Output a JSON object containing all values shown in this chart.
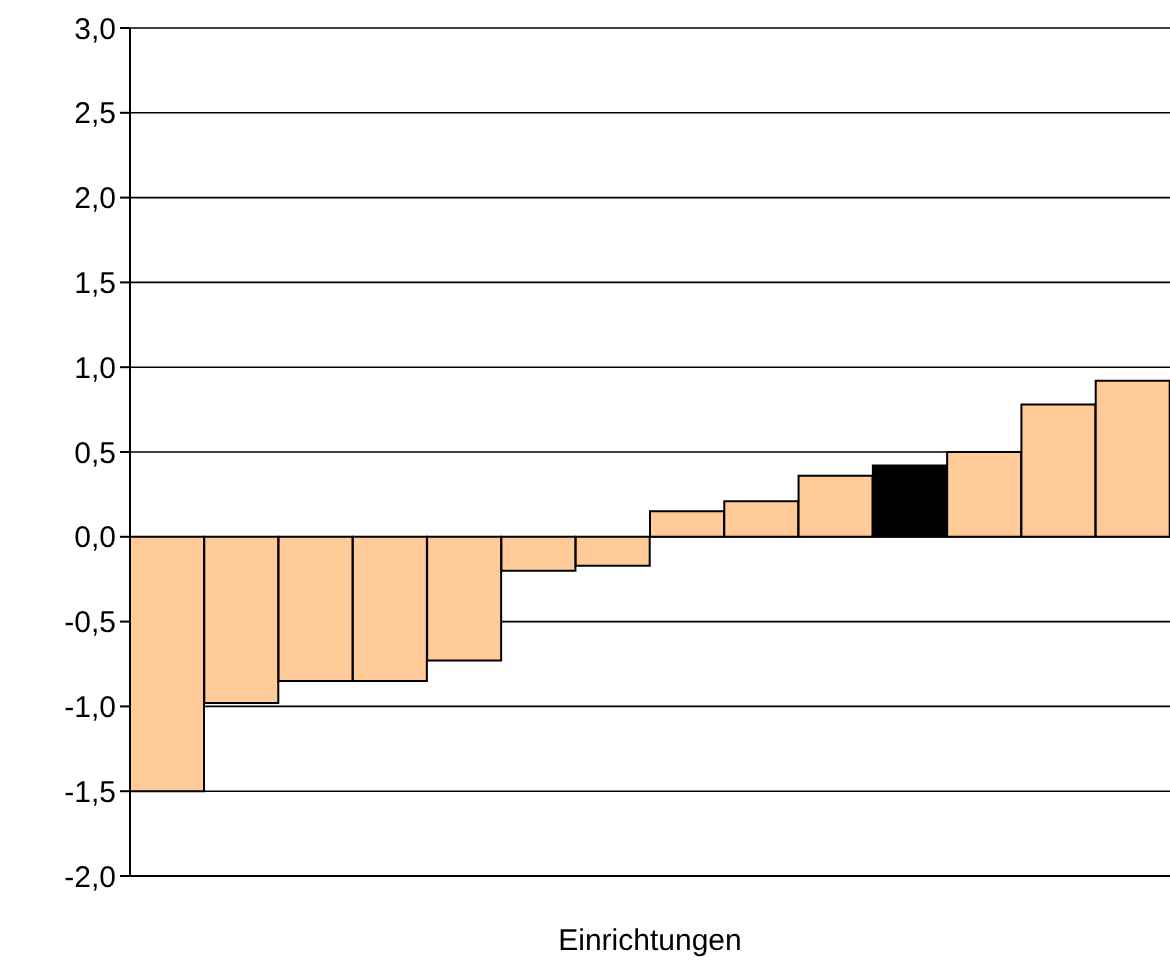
{
  "chart_data": {
    "type": "bar",
    "xlabel": "Einrichtungen",
    "categories": [
      null,
      null,
      null,
      null,
      null,
      null,
      null,
      null,
      null,
      null,
      null,
      null,
      null,
      null
    ],
    "values": [
      -1.5,
      -0.98,
      -0.85,
      -0.85,
      -0.73,
      -0.2,
      -0.17,
      0.15,
      0.21,
      0.36,
      0.42,
      0.5,
      0.78,
      0.92
    ],
    "colors": [
      "#ffcc99",
      "#ffcc99",
      "#ffcc99",
      "#ffcc99",
      "#ffcc99",
      "#ffcc99",
      "#ffcc99",
      "#ffcc99",
      "#ffcc99",
      "#ffcc99",
      "#000000",
      "#ffcc99",
      "#ffcc99",
      "#ffcc99"
    ],
    "ylim": [
      -2,
      3
    ],
    "yticks": [
      {
        "value": -2,
        "label": "-2,0"
      },
      {
        "value": -1.5,
        "label": "-1,5"
      },
      {
        "value": -1,
        "label": "-1,0"
      },
      {
        "value": -0.5,
        "label": "-0,5"
      },
      {
        "value": 0,
        "label": "0,0"
      },
      {
        "value": 0.5,
        "label": "0,5"
      },
      {
        "value": 1,
        "label": "1,0"
      },
      {
        "value": 1.5,
        "label": "1,5"
      },
      {
        "value": 2,
        "label": "2,0"
      },
      {
        "value": 2.5,
        "label": "2,5"
      },
      {
        "value": 3,
        "label": "3,0"
      }
    ],
    "grid": "y",
    "tick_labels": "y"
  }
}
